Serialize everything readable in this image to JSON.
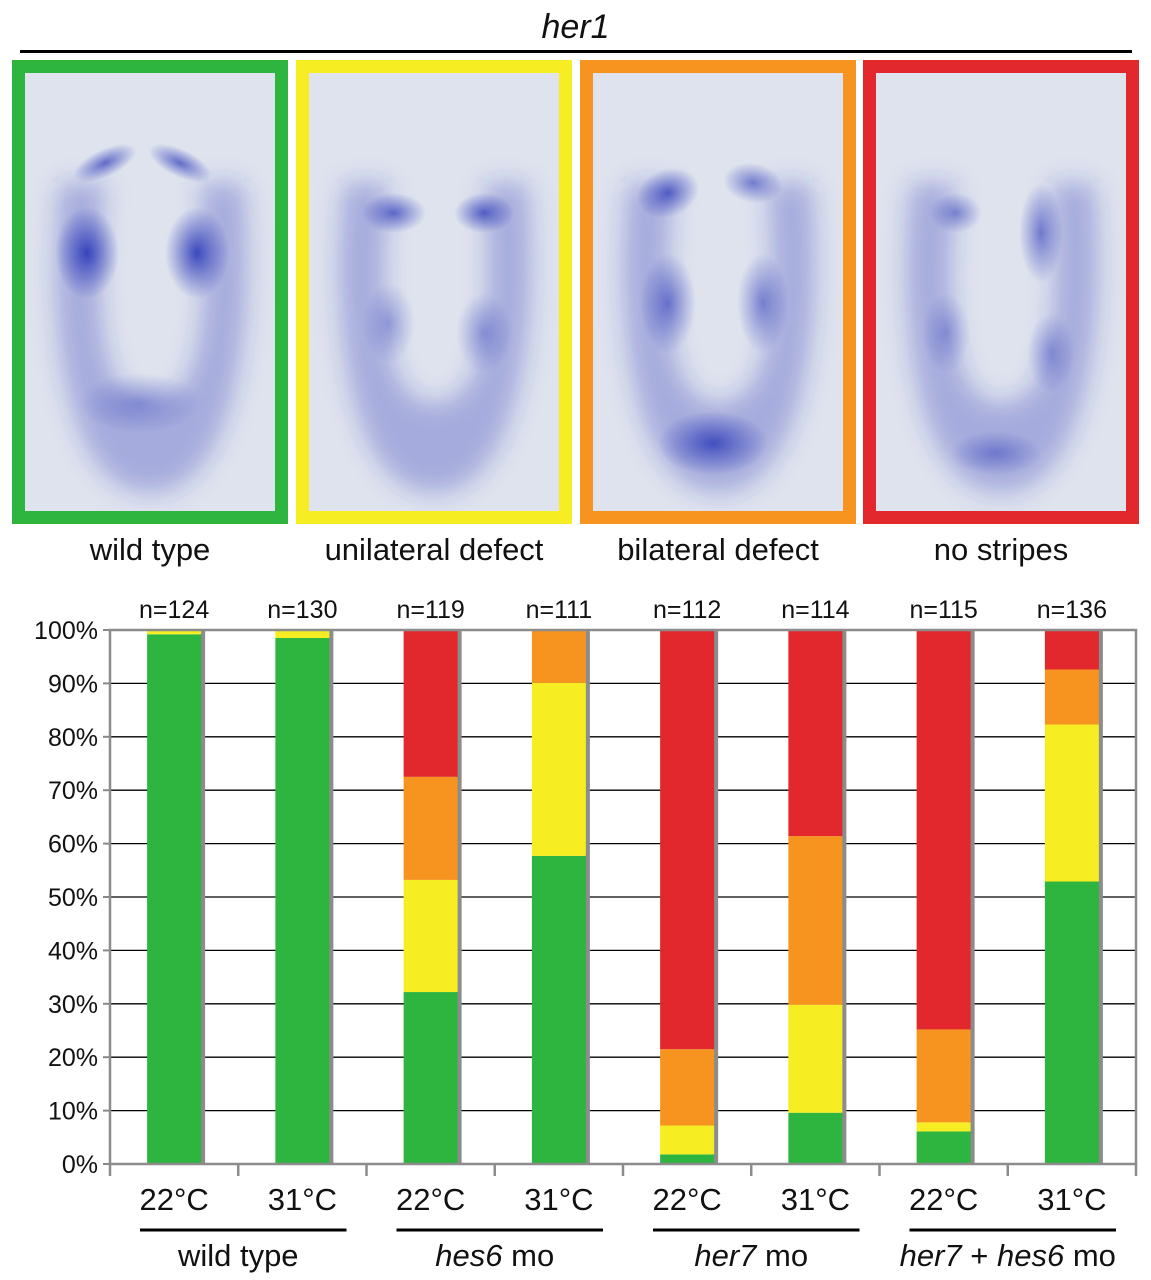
{
  "figure_title": "her1",
  "colors": {
    "wild_type": "#2db540",
    "unilateral_defect": "#f6ed22",
    "bilateral_defect": "#f79420",
    "no_stripes": "#e2282c",
    "embryo_stain": "#2a38b8",
    "embryo_background": "#dfe3ee"
  },
  "panels": [
    {
      "label": "wild type",
      "color": "#2db540"
    },
    {
      "label": "unilateral defect",
      "color": "#f6ed22"
    },
    {
      "label": "bilateral defect",
      "color": "#f79420"
    },
    {
      "label": "no stripes",
      "color": "#e2282c"
    }
  ],
  "chart_data": {
    "type": "bar",
    "stacked": true,
    "percent": true,
    "ylim": [
      0,
      100
    ],
    "yticks": [
      "0%",
      "10%",
      "20%",
      "30%",
      "40%",
      "50%",
      "60%",
      "70%",
      "80%",
      "90%",
      "100%"
    ],
    "grid": true,
    "categories": [
      "22°C",
      "31°C",
      "22°C",
      "31°C",
      "22°C",
      "31°C",
      "22°C",
      "31°C"
    ],
    "counts": [
      "n=124",
      "n=130",
      "n=119",
      "n=111",
      "n=112",
      "n=114",
      "n=115",
      "n=136"
    ],
    "groups": [
      {
        "label": "wild type",
        "parts": [
          {
            "text": "wild type",
            "italic": false
          }
        ]
      },
      {
        "label": "hes6 mo",
        "parts": [
          {
            "text": "hes6",
            "italic": true
          },
          {
            "text": " mo",
            "italic": false
          }
        ]
      },
      {
        "label": "her7 mo",
        "parts": [
          {
            "text": "her7",
            "italic": true
          },
          {
            "text": " mo",
            "italic": false
          }
        ]
      },
      {
        "label": "her7 + hes6 mo",
        "parts": [
          {
            "text": "her7",
            "italic": true
          },
          {
            "text": " + ",
            "italic": false
          },
          {
            "text": "hes6",
            "italic": true
          },
          {
            "text": " mo",
            "italic": false
          }
        ]
      }
    ],
    "series": [
      {
        "name": "wild type",
        "color": "#2db540",
        "values": [
          99.2,
          98.5,
          32.2,
          57.7,
          1.8,
          9.6,
          6.1,
          52.9
        ]
      },
      {
        "name": "unilateral defect",
        "color": "#f6ed22",
        "values": [
          0.8,
          1.5,
          21.0,
          32.4,
          5.4,
          20.2,
          1.7,
          29.4
        ]
      },
      {
        "name": "bilateral defect",
        "color": "#f79420",
        "values": [
          0,
          0,
          19.3,
          9.9,
          14.3,
          31.6,
          17.4,
          10.3
        ]
      },
      {
        "name": "no stripes",
        "color": "#e2282c",
        "values": [
          0,
          0,
          27.5,
          0,
          78.5,
          38.6,
          74.8,
          7.4
        ]
      }
    ]
  }
}
